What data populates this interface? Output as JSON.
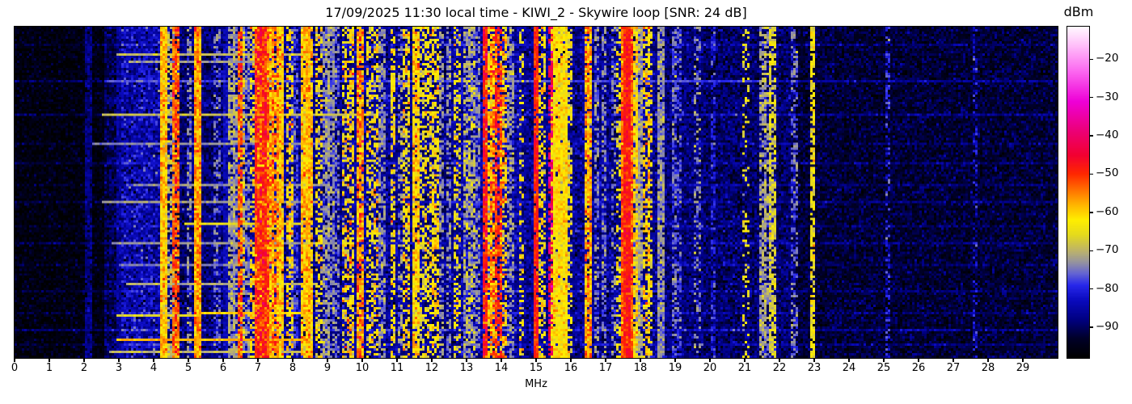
{
  "header": {
    "title": "17/09/2025 11:30 local time - KIWI_2 - Skywire loop [SNR: 24 dB]"
  },
  "x_axis": {
    "label": "MHz",
    "tick_labels": [
      "0",
      "1",
      "2",
      "3",
      "4",
      "5",
      "6",
      "7",
      "8",
      "9",
      "10",
      "11",
      "12",
      "13",
      "14",
      "15",
      "16",
      "17",
      "18",
      "19",
      "20",
      "21",
      "22",
      "23",
      "24",
      "25",
      "26",
      "27",
      "28",
      "29"
    ],
    "tick_values": [
      0,
      1,
      2,
      3,
      4,
      5,
      6,
      7,
      8,
      9,
      10,
      11,
      12,
      13,
      14,
      15,
      16,
      17,
      18,
      19,
      20,
      21,
      22,
      23,
      24,
      25,
      26,
      27,
      28,
      29
    ]
  },
  "colorbar": {
    "label": "dBm",
    "tick_labels": [
      "−20",
      "−30",
      "−40",
      "−50",
      "−60",
      "−70",
      "−80",
      "−90"
    ],
    "tick_values": [
      -20,
      -30,
      -40,
      -50,
      -60,
      -70,
      -80,
      -90
    ],
    "vmax": -11.5,
    "vmin": -98
  },
  "chart_data": {
    "type": "heatmap",
    "subtype": "spectrogram-waterfall",
    "title": "17/09/2025 11:30 local time - KIWI_2 - Skywire loop [SNR: 24 dB]",
    "xlabel": "MHz",
    "x_range_mhz": [
      0,
      30
    ],
    "y_axis": "time (no tick labels shown)",
    "power_range_dbm": [
      -98,
      -11.5
    ],
    "legend_position": "right-colorbar",
    "grid": false,
    "colormap_stops": [
      [
        -98,
        [
          0,
          0,
          0
        ]
      ],
      [
        -93,
        [
          0,
          0,
          40
        ]
      ],
      [
        -88,
        [
          0,
          0,
          130
        ]
      ],
      [
        -83,
        [
          10,
          10,
          190
        ]
      ],
      [
        -79,
        [
          40,
          40,
          235
        ]
      ],
      [
        -76,
        [
          100,
          100,
          210
        ]
      ],
      [
        -73,
        [
          150,
          148,
          158
        ]
      ],
      [
        -70,
        [
          190,
          180,
          105
        ]
      ],
      [
        -66,
        [
          228,
          218,
          30
        ]
      ],
      [
        -62,
        [
          255,
          238,
          0
        ]
      ],
      [
        -58,
        [
          255,
          180,
          0
        ]
      ],
      [
        -54,
        [
          255,
          110,
          0
        ]
      ],
      [
        -50,
        [
          255,
          40,
          0
        ]
      ],
      [
        -45,
        [
          242,
          0,
          50
        ]
      ],
      [
        -39,
        [
          236,
          0,
          115
        ]
      ],
      [
        -31,
        [
          238,
          0,
          215
        ]
      ],
      [
        -23,
        [
          252,
          105,
          240
        ]
      ],
      [
        -16,
        [
          255,
          195,
          250
        ]
      ],
      [
        -11,
        [
          255,
          255,
          255
        ]
      ]
    ],
    "noise_floor_profile_f0_f1_dbm_sigma": [
      [
        0,
        2.6,
        -96,
        2.5
      ],
      [
        2.6,
        3.1,
        -91,
        3
      ],
      [
        3.1,
        4.35,
        -84.5,
        4
      ],
      [
        4.35,
        5.0,
        -89,
        3
      ],
      [
        5.0,
        6.3,
        -88.5,
        3
      ],
      [
        6.3,
        8.0,
        -86.5,
        3.5
      ],
      [
        8.0,
        9.4,
        -87.5,
        3
      ],
      [
        9.4,
        11.0,
        -86.5,
        3.5
      ],
      [
        11.0,
        12.6,
        -87.5,
        3
      ],
      [
        12.6,
        14.6,
        -85.5,
        3.5
      ],
      [
        14.6,
        16.1,
        -87,
        3
      ],
      [
        16.1,
        18.6,
        -87,
        3.5
      ],
      [
        18.6,
        19.8,
        -88.5,
        3
      ],
      [
        19.8,
        22.5,
        -89.5,
        3.2
      ],
      [
        22.5,
        30,
        -92.5,
        2.8
      ]
    ],
    "signals_f_width_dbm_sigma_duty": [
      [
        2.1,
        0.03,
        -88,
        2,
        0.9
      ],
      [
        2.95,
        0.03,
        -86,
        2,
        0.9
      ],
      [
        6.05,
        0.03,
        -84,
        2,
        0.9
      ],
      [
        4.28,
        0.07,
        -60,
        4,
        1
      ],
      [
        4.47,
        0.03,
        -70,
        4,
        0.5
      ],
      [
        4.62,
        0.04,
        -53,
        4,
        0.85
      ],
      [
        5.0,
        0.03,
        -74,
        3,
        0.5
      ],
      [
        5.24,
        0.08,
        -57,
        4,
        1
      ],
      [
        5.8,
        0.03,
        -76,
        3,
        0.4
      ],
      [
        6.21,
        0.04,
        -72,
        3,
        0.7
      ],
      [
        6.31,
        0.03,
        -73,
        3,
        0.6
      ],
      [
        6.44,
        0.04,
        -52,
        4,
        0.8
      ],
      [
        6.52,
        0.03,
        -62,
        4,
        0.5
      ],
      [
        6.62,
        0.04,
        -74,
        3,
        0.6
      ],
      [
        6.8,
        0.04,
        -64,
        5,
        0.5
      ],
      [
        7.05,
        0.18,
        -50,
        5,
        1
      ],
      [
        7.18,
        0.1,
        -55,
        6,
        1
      ],
      [
        7.3,
        0.08,
        -58,
        5,
        0.9
      ],
      [
        7.47,
        0.03,
        -55,
        4,
        0.6
      ],
      [
        7.58,
        0.05,
        -60,
        4,
        0.95
      ],
      [
        7.86,
        0.05,
        -63,
        5,
        0.55
      ],
      [
        8.02,
        0.04,
        -78,
        3,
        0.6
      ],
      [
        8.33,
        0.09,
        -60,
        4,
        0.95
      ],
      [
        8.45,
        0.06,
        -60,
        4,
        0.9
      ],
      [
        8.72,
        0.05,
        -64,
        5,
        0.5
      ],
      [
        8.92,
        0.04,
        -73,
        3,
        0.7
      ],
      [
        9.05,
        0.04,
        -74,
        3,
        0.6
      ],
      [
        9.2,
        0.03,
        -75,
        3,
        0.5
      ],
      [
        9.45,
        0.04,
        -63,
        5,
        0.5
      ],
      [
        9.65,
        0.05,
        -62,
        5,
        0.6
      ],
      [
        9.9,
        0.09,
        -56,
        5,
        0.9
      ],
      [
        10.15,
        0.04,
        -64,
        4,
        0.5
      ],
      [
        10.35,
        0.05,
        -63,
        5,
        0.5
      ],
      [
        10.55,
        0.04,
        -73,
        3,
        0.6
      ],
      [
        10.85,
        0.04,
        -62,
        4,
        0.6
      ],
      [
        11.05,
        0.04,
        -72,
        4,
        0.5
      ],
      [
        11.25,
        0.05,
        -63,
        5,
        0.55
      ],
      [
        11.52,
        0.07,
        -60,
        4,
        0.9
      ],
      [
        11.7,
        0.04,
        -65,
        4,
        0.5
      ],
      [
        11.85,
        0.05,
        -63,
        4,
        0.5
      ],
      [
        12.05,
        0.05,
        -62,
        4,
        0.6
      ],
      [
        12.23,
        0.04,
        -73,
        3,
        0.6
      ],
      [
        12.45,
        0.03,
        -74,
        3,
        0.5
      ],
      [
        12.7,
        0.04,
        -64,
        4,
        0.45
      ],
      [
        12.95,
        0.05,
        -72,
        4,
        0.7
      ],
      [
        13.1,
        0.05,
        -71,
        4,
        0.7
      ],
      [
        13.28,
        0.04,
        -73,
        3,
        0.6
      ],
      [
        13.5,
        0.04,
        -48,
        4,
        0.9
      ],
      [
        13.62,
        0.05,
        -61,
        5,
        0.7
      ],
      [
        13.73,
        0.05,
        -57,
        6,
        0.8
      ],
      [
        13.87,
        0.03,
        -50,
        4,
        0.6
      ],
      [
        14.0,
        0.05,
        -61,
        5,
        0.6
      ],
      [
        14.22,
        0.04,
        -73,
        3,
        0.6
      ],
      [
        14.55,
        0.04,
        -64,
        4,
        0.4
      ],
      [
        14.95,
        0.03,
        -49,
        3,
        0.95
      ],
      [
        15.15,
        0.04,
        -63,
        4,
        0.5
      ],
      [
        15.37,
        0.03,
        -42,
        4,
        0.55
      ],
      [
        15.62,
        0.33,
        -62,
        3,
        0.97
      ],
      [
        15.9,
        0.04,
        -64,
        4,
        0.5
      ],
      [
        16.47,
        0.05,
        -57,
        4,
        0.9
      ],
      [
        16.7,
        0.04,
        -74,
        3,
        0.5
      ],
      [
        16.9,
        0.03,
        -75,
        3,
        0.5
      ],
      [
        17.2,
        0.03,
        -74,
        3,
        0.4
      ],
      [
        17.35,
        0.03,
        -64,
        4,
        0.5
      ],
      [
        17.58,
        0.18,
        -53,
        4,
        1
      ],
      [
        17.58,
        0.08,
        -49,
        3,
        1
      ],
      [
        17.79,
        0.03,
        -62,
        4,
        0.8
      ],
      [
        17.92,
        0.04,
        -72,
        3,
        0.9
      ],
      [
        18.12,
        0.04,
        -61,
        4,
        0.5
      ],
      [
        18.24,
        0.04,
        -63,
        4,
        0.45
      ],
      [
        18.57,
        0.03,
        -73,
        3,
        0.9
      ],
      [
        18.95,
        0.04,
        -76,
        3,
        0.6
      ],
      [
        19.1,
        0.03,
        -77,
        3,
        0.5
      ],
      [
        19.6,
        0.03,
        -74,
        3,
        0.35
      ],
      [
        20.05,
        0.03,
        -80,
        3,
        0.5
      ],
      [
        21.0,
        0.03,
        -65,
        3,
        0.25
      ],
      [
        21.5,
        0.05,
        -72,
        3,
        0.65
      ],
      [
        21.62,
        0.04,
        -73,
        3,
        0.5
      ],
      [
        21.76,
        0.03,
        -67,
        3,
        0.7
      ],
      [
        22.4,
        0.03,
        -76,
        3,
        0.5
      ],
      [
        22.9,
        0.03,
        -64,
        3,
        0.75
      ],
      [
        25.1,
        0.03,
        -80,
        3,
        0.4
      ],
      [
        27.6,
        0.03,
        -82,
        3,
        0.35
      ]
    ],
    "horizontal_events_yfrac_f0_f1_dbm": [
      [
        0.083,
        2.9,
        8.6,
        -70
      ],
      [
        0.105,
        3.3,
        7.0,
        -73
      ],
      [
        0.165,
        2.6,
        21.5,
        -78
      ],
      [
        0.265,
        2.5,
        10.4,
        -69
      ],
      [
        0.35,
        2.2,
        8.8,
        -74
      ],
      [
        0.475,
        3.4,
        9.0,
        -73
      ],
      [
        0.53,
        2.5,
        8.6,
        -72
      ],
      [
        0.595,
        4.9,
        8.3,
        -66
      ],
      [
        0.655,
        2.8,
        9.2,
        -73
      ],
      [
        0.72,
        3.0,
        8.0,
        -75
      ],
      [
        0.78,
        3.2,
        8.6,
        -71
      ],
      [
        0.87,
        5.2,
        8.3,
        -60
      ],
      [
        0.872,
        2.9,
        5.2,
        -67
      ],
      [
        0.945,
        2.9,
        8.35,
        -58
      ],
      [
        0.985,
        2.7,
        8.3,
        -70
      ]
    ],
    "time_row_noise_boosts_yfrac_db": [
      [
        0.055,
        3
      ],
      [
        0.165,
        6
      ],
      [
        0.265,
        5
      ],
      [
        0.35,
        3
      ],
      [
        0.41,
        4
      ],
      [
        0.475,
        3
      ],
      [
        0.53,
        4
      ],
      [
        0.6,
        3
      ],
      [
        0.655,
        4
      ],
      [
        0.72,
        3
      ],
      [
        0.8,
        4
      ],
      [
        0.87,
        3
      ],
      [
        0.92,
        6
      ],
      [
        0.965,
        4
      ]
    ]
  }
}
